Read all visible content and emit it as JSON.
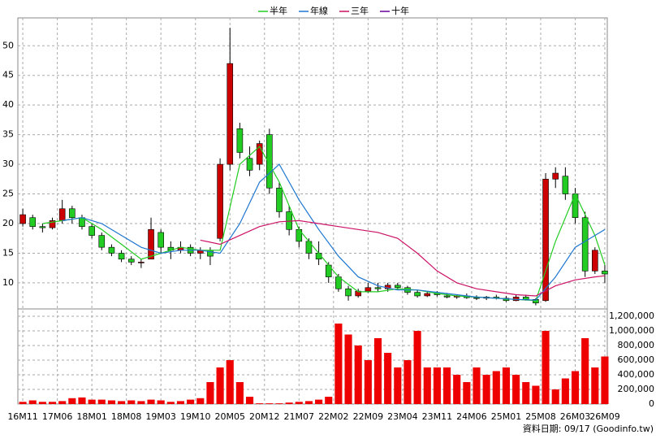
{
  "chart_data": {
    "type": "candlestick",
    "xlim": [
      -1,
      118.5
    ],
    "xticks": [
      {
        "value": 0,
        "label": "16M11"
      },
      {
        "value": 7,
        "label": "17M06"
      },
      {
        "value": 14,
        "label": "18M01"
      },
      {
        "value": 21,
        "label": "18M08"
      },
      {
        "value": 28,
        "label": "19M03"
      },
      {
        "value": 35,
        "label": "19M10"
      },
      {
        "value": 42,
        "label": "20M05"
      },
      {
        "value": 49,
        "label": "20M12"
      },
      {
        "value": 56,
        "label": "21M07"
      },
      {
        "value": 63,
        "label": "22M02"
      },
      {
        "value": 70,
        "label": "22M09"
      },
      {
        "value": 77,
        "label": "23M04"
      },
      {
        "value": 84,
        "label": "23M11"
      },
      {
        "value": 91,
        "label": "24M06"
      },
      {
        "value": 98,
        "label": "25M01"
      },
      {
        "value": 105,
        "label": "25M08"
      },
      {
        "value": 112,
        "label": "26M03"
      },
      {
        "value": 118,
        "label": "26M09"
      }
    ],
    "ylim": [
      5.6,
      54.7
    ],
    "yticks": [
      10,
      15,
      20,
      25,
      30,
      35,
      40,
      45,
      50
    ],
    "grid": true,
    "up_color": "#cc0000",
    "down_color": "#22cc22",
    "candles": {
      "x": [
        0,
        2,
        4,
        6,
        8,
        10,
        12,
        14,
        16,
        18,
        20,
        22,
        24,
        26,
        28,
        30,
        32,
        34,
        36,
        38,
        40,
        42,
        44,
        46,
        48,
        50,
        52,
        54,
        56,
        58,
        60,
        62,
        64,
        66,
        68,
        70,
        72,
        74,
        76,
        78,
        80,
        82,
        84,
        86,
        88,
        90,
        92,
        94,
        96,
        98,
        100,
        102,
        104,
        106,
        108,
        110,
        112,
        114,
        116,
        118
      ],
      "open": [
        20,
        21,
        19.5,
        19.3,
        20.5,
        22.5,
        21,
        19.5,
        18,
        16,
        15,
        14,
        13.5,
        14,
        18.5,
        16,
        15.5,
        16,
        15,
        15.5,
        17.5,
        30,
        36,
        31,
        30,
        35,
        26,
        22,
        19,
        17,
        15,
        13,
        11,
        9,
        7.8,
        8.6,
        9.2,
        9,
        9.6,
        9.2,
        8.4,
        7.8,
        8.2,
        7.8,
        7.6,
        7.8,
        7.5,
        7.4,
        7.6,
        7.4,
        7,
        7.6,
        7.2,
        7,
        27.5,
        28,
        25,
        21,
        12,
        12
      ],
      "high": [
        22.5,
        21.5,
        20,
        21,
        24,
        23,
        21.5,
        20,
        18.5,
        16.5,
        15.5,
        14.5,
        14,
        21,
        19,
        17,
        17,
        16.5,
        16,
        16,
        31,
        53,
        37,
        33,
        34,
        36,
        27,
        23,
        19.5,
        17.5,
        17,
        13.5,
        11.5,
        9.5,
        9,
        10,
        10,
        10,
        10,
        9.5,
        8.8,
        8.5,
        8.6,
        8.3,
        8,
        8.2,
        7.9,
        7.8,
        8,
        7.8,
        8,
        8,
        7.4,
        28.5,
        29.5,
        29.5,
        26,
        22,
        16,
        13
      ],
      "low": [
        19.5,
        19,
        18.5,
        19,
        20,
        20,
        19,
        17.5,
        15.5,
        14.5,
        13.5,
        13,
        12.5,
        14,
        15,
        14,
        15,
        14.5,
        14,
        13,
        17,
        29,
        31,
        28,
        29,
        25,
        21,
        18,
        16,
        14,
        13,
        10,
        8.5,
        7,
        7.5,
        8.3,
        8.5,
        8.5,
        8.8,
        8,
        7.5,
        7.6,
        7.7,
        7.4,
        7.3,
        7.3,
        7.1,
        7.1,
        7.2,
        6.8,
        6.9,
        7,
        6.2,
        6.8,
        26,
        24,
        20,
        11,
        11.5,
        10
      ],
      "close": [
        21.5,
        19.5,
        19.3,
        20.5,
        22.5,
        21,
        19.5,
        18,
        16,
        15,
        14,
        13.5,
        13.5,
        19,
        16,
        15.5,
        16,
        15,
        15.5,
        14.5,
        30,
        47,
        32,
        29,
        33.5,
        26,
        22,
        19,
        17,
        15,
        14,
        11,
        9,
        7.8,
        8.6,
        9.2,
        9,
        9.6,
        9.2,
        8.4,
        7.8,
        8.2,
        8,
        7.6,
        7.8,
        7.5,
        7.4,
        7.6,
        7.4,
        7,
        7.6,
        7.2,
        6.6,
        27.5,
        28.5,
        25,
        21,
        12,
        15.5,
        11.5
      ]
    },
    "volume": {
      "color": "#ee0000",
      "ylim": [
        0,
        1300000
      ],
      "yticks": [
        0,
        {
          "value": 200000,
          "label": "200,000"
        },
        {
          "value": 400000,
          "label": "400,000"
        },
        {
          "value": 600000,
          "label": "600,000"
        },
        {
          "value": 800000,
          "label": "800,000"
        },
        {
          "value": 1000000,
          "label": "1,000,000"
        },
        {
          "value": 1200000,
          "label": "1,200,000"
        }
      ],
      "values": [
        30000,
        50000,
        30000,
        30000,
        40000,
        80000,
        90000,
        60000,
        60000,
        50000,
        40000,
        50000,
        40000,
        60000,
        50000,
        30000,
        40000,
        60000,
        80000,
        300000,
        500000,
        600000,
        300000,
        100000,
        10000,
        10000,
        10000,
        20000,
        30000,
        40000,
        60000,
        100000,
        1100000,
        950000,
        800000,
        600000,
        900000,
        700000,
        500000,
        600000,
        1000000,
        500000,
        500000,
        500000,
        400000,
        300000,
        500000,
        400000,
        450000,
        500000,
        400000,
        300000,
        250000,
        1000000,
        200000,
        350000,
        450000,
        900000,
        500000,
        650000
      ]
    },
    "series": [
      {
        "name": "半年",
        "color": "#22cc22",
        "x": [
          4,
          8,
          12,
          16,
          20,
          24,
          28,
          32,
          36,
          40,
          44,
          48,
          52,
          56,
          60,
          64,
          68,
          72,
          76,
          80,
          84,
          88,
          92,
          96,
          100,
          104,
          108,
          112,
          116,
          118
        ],
        "values": [
          20,
          20.5,
          21,
          19,
          16.5,
          14,
          15,
          16,
          15.5,
          15.5,
          30,
          33,
          27,
          19,
          15,
          11,
          8.5,
          8.5,
          9,
          8.8,
          8.2,
          7.8,
          7.6,
          7.4,
          7.2,
          7,
          17,
          25,
          18,
          13
        ]
      },
      {
        "name": "年線",
        "color": "#1f77d0",
        "x": [
          8,
          12,
          16,
          20,
          24,
          28,
          32,
          36,
          40,
          44,
          48,
          52,
          56,
          60,
          64,
          68,
          72,
          76,
          80,
          84,
          88,
          92,
          96,
          100,
          104,
          108,
          112,
          116,
          118
        ],
        "values": [
          20.5,
          21,
          20,
          18,
          16,
          15,
          15.5,
          15.5,
          15,
          20,
          27,
          30,
          24,
          19,
          14.5,
          11,
          9.5,
          8.8,
          8.8,
          8.4,
          8,
          7.6,
          7.4,
          7.2,
          7.1,
          11,
          16,
          18,
          19
        ]
      },
      {
        "name": "三年",
        "color": "#cc1166",
        "x": [
          36,
          40,
          44,
          48,
          52,
          56,
          60,
          64,
          68,
          72,
          76,
          80,
          84,
          88,
          92,
          96,
          100,
          104,
          108,
          112,
          116,
          118
        ],
        "values": [
          17.2,
          16.5,
          18,
          19.5,
          20.3,
          20.5,
          20,
          19.5,
          19,
          18.5,
          17.5,
          15,
          12,
          10,
          9,
          8.5,
          8,
          7.8,
          9.5,
          10.5,
          11,
          11.2
        ]
      },
      {
        "name": "十年",
        "color": "#660099",
        "x": [],
        "values": []
      }
    ],
    "footnote": "資料日期: 09/17 (Goodinfo.tw)"
  }
}
